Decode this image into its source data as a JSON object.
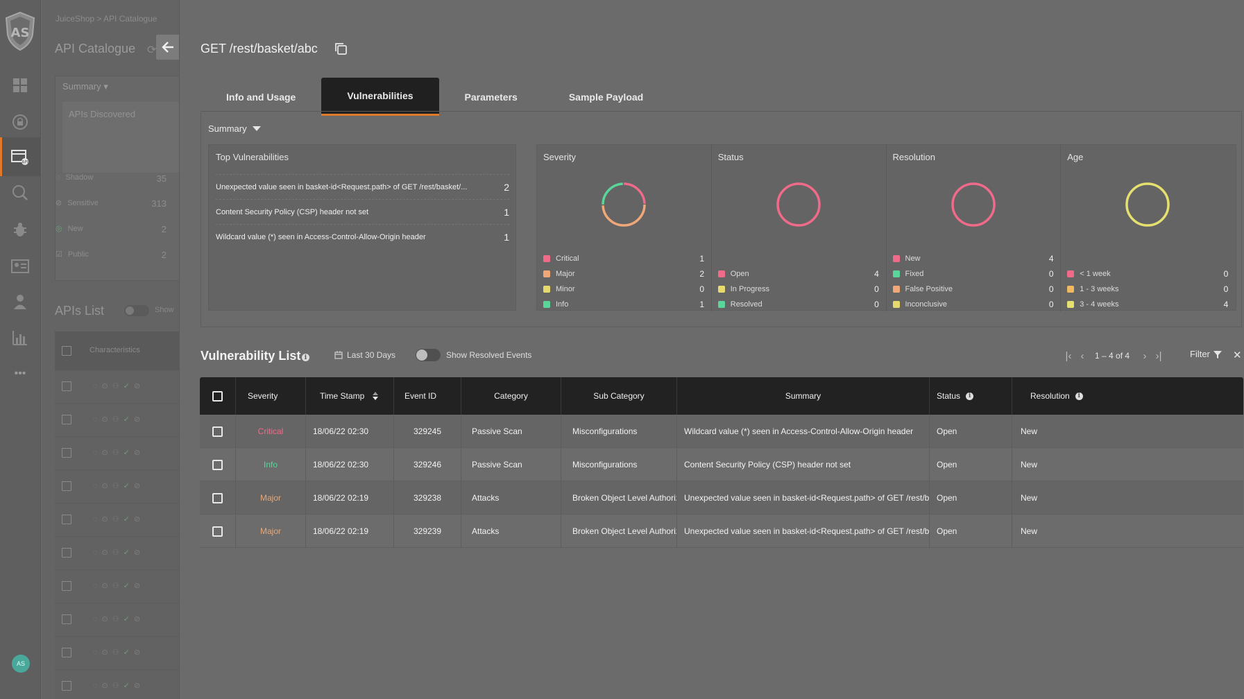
{
  "breadcrumb": "JuiceShop > API Catalogue",
  "catalog": {
    "title": "API Catalogue",
    "summary_label": "Summary",
    "apis_discovered": "APIs Discovered",
    "rows": [
      {
        "label": "Shadow",
        "count": "35"
      },
      {
        "label": "Sensitive",
        "count": "313"
      },
      {
        "label": "New",
        "count": "2"
      },
      {
        "label": "Public",
        "count": "2"
      }
    ],
    "apis_list": "APIs List",
    "show_label": "Show",
    "characteristics": "Characteristics"
  },
  "avatar": "AS",
  "api": {
    "title": "GET /rest/basket/abc"
  },
  "tabs": [
    "Info and Usage",
    "Vulnerabilities",
    "Parameters",
    "Sample Payload"
  ],
  "active_tab": "Vulnerabilities",
  "summary": {
    "label": "Summary",
    "top_vulns": {
      "title": "Top Vulnerabilities",
      "items": [
        {
          "text": "Unexpected value seen in basket-id<Request.path> of GET /rest/basket/...",
          "count": "2"
        },
        {
          "text": "Content Security Policy (CSP) header not set",
          "count": "1"
        },
        {
          "text": "Wildcard value (*) seen in Access-Control-Allow-Origin header",
          "count": "1"
        }
      ]
    },
    "stats": [
      {
        "title": "Severity",
        "legend": [
          {
            "label": "Critical",
            "value": "1",
            "color": "#f06a8a"
          },
          {
            "label": "Major",
            "value": "2",
            "color": "#f0a878"
          },
          {
            "label": "Minor",
            "value": "0",
            "color": "#e6d96e"
          },
          {
            "label": "Info",
            "value": "1",
            "color": "#5bd69a"
          }
        ]
      },
      {
        "title": "Status",
        "legend": [
          {
            "label": "Open",
            "value": "4",
            "color": "#f06a8a"
          },
          {
            "label": "In Progress",
            "value": "0",
            "color": "#e6d96e"
          },
          {
            "label": "Resolved",
            "value": "0",
            "color": "#5bd69a"
          }
        ]
      },
      {
        "title": "Resolution",
        "legend": [
          {
            "label": "New",
            "value": "4",
            "color": "#f06a8a"
          },
          {
            "label": "Fixed",
            "value": "0",
            "color": "#5bd69a"
          },
          {
            "label": "False Positive",
            "value": "0",
            "color": "#f0a878"
          },
          {
            "label": "Inconclusive",
            "value": "0",
            "color": "#e6d96e"
          }
        ]
      },
      {
        "title": "Age",
        "legend": [
          {
            "label": "< 1 week",
            "value": "0",
            "color": "#f06a8a"
          },
          {
            "label": "1 - 3 weeks",
            "value": "0",
            "color": "#f0b860"
          },
          {
            "label": "3 - 4 weeks",
            "value": "4",
            "color": "#e6e070"
          }
        ]
      }
    ]
  },
  "vuln_list": {
    "title": "Vulnerability List",
    "date_range": "Last 30 Days",
    "show_resolved": "Show Resolved Events",
    "pagination": "1 – 4 of 4",
    "filter": "Filter",
    "columns": [
      "Severity",
      "Time Stamp",
      "Event ID",
      "Category",
      "Sub Category",
      "Summary",
      "Status",
      "Resolution"
    ],
    "rows": [
      {
        "severity": "Critical",
        "timestamp": "18/06/22 02:30",
        "event_id": "329245",
        "category": "Passive Scan",
        "sub_category": "Misconfigurations",
        "summary": "Wildcard value (*) seen in Access-Control-Allow-Origin header",
        "status": "Open",
        "resolution": "New"
      },
      {
        "severity": "Info",
        "timestamp": "18/06/22 02:30",
        "event_id": "329246",
        "category": "Passive Scan",
        "sub_category": "Misconfigurations",
        "summary": "Content Security Policy (CSP) header not set",
        "status": "Open",
        "resolution": "New"
      },
      {
        "severity": "Major",
        "timestamp": "18/06/22 02:19",
        "event_id": "329238",
        "category": "Attacks",
        "sub_category": "Broken Object Level Authoriz...",
        "summary": "Unexpected value seen in basket-id<Request.path> of GET /rest/basket/...",
        "status": "Open",
        "resolution": "New"
      },
      {
        "severity": "Major",
        "timestamp": "18/06/22 02:19",
        "event_id": "329239",
        "category": "Attacks",
        "sub_category": "Broken Object Level Authoriz...",
        "summary": "Unexpected value seen in basket-id<Request.path> of GET /rest/basket/...",
        "status": "Open",
        "resolution": "New"
      }
    ]
  },
  "accent_color": "#e07a2a"
}
